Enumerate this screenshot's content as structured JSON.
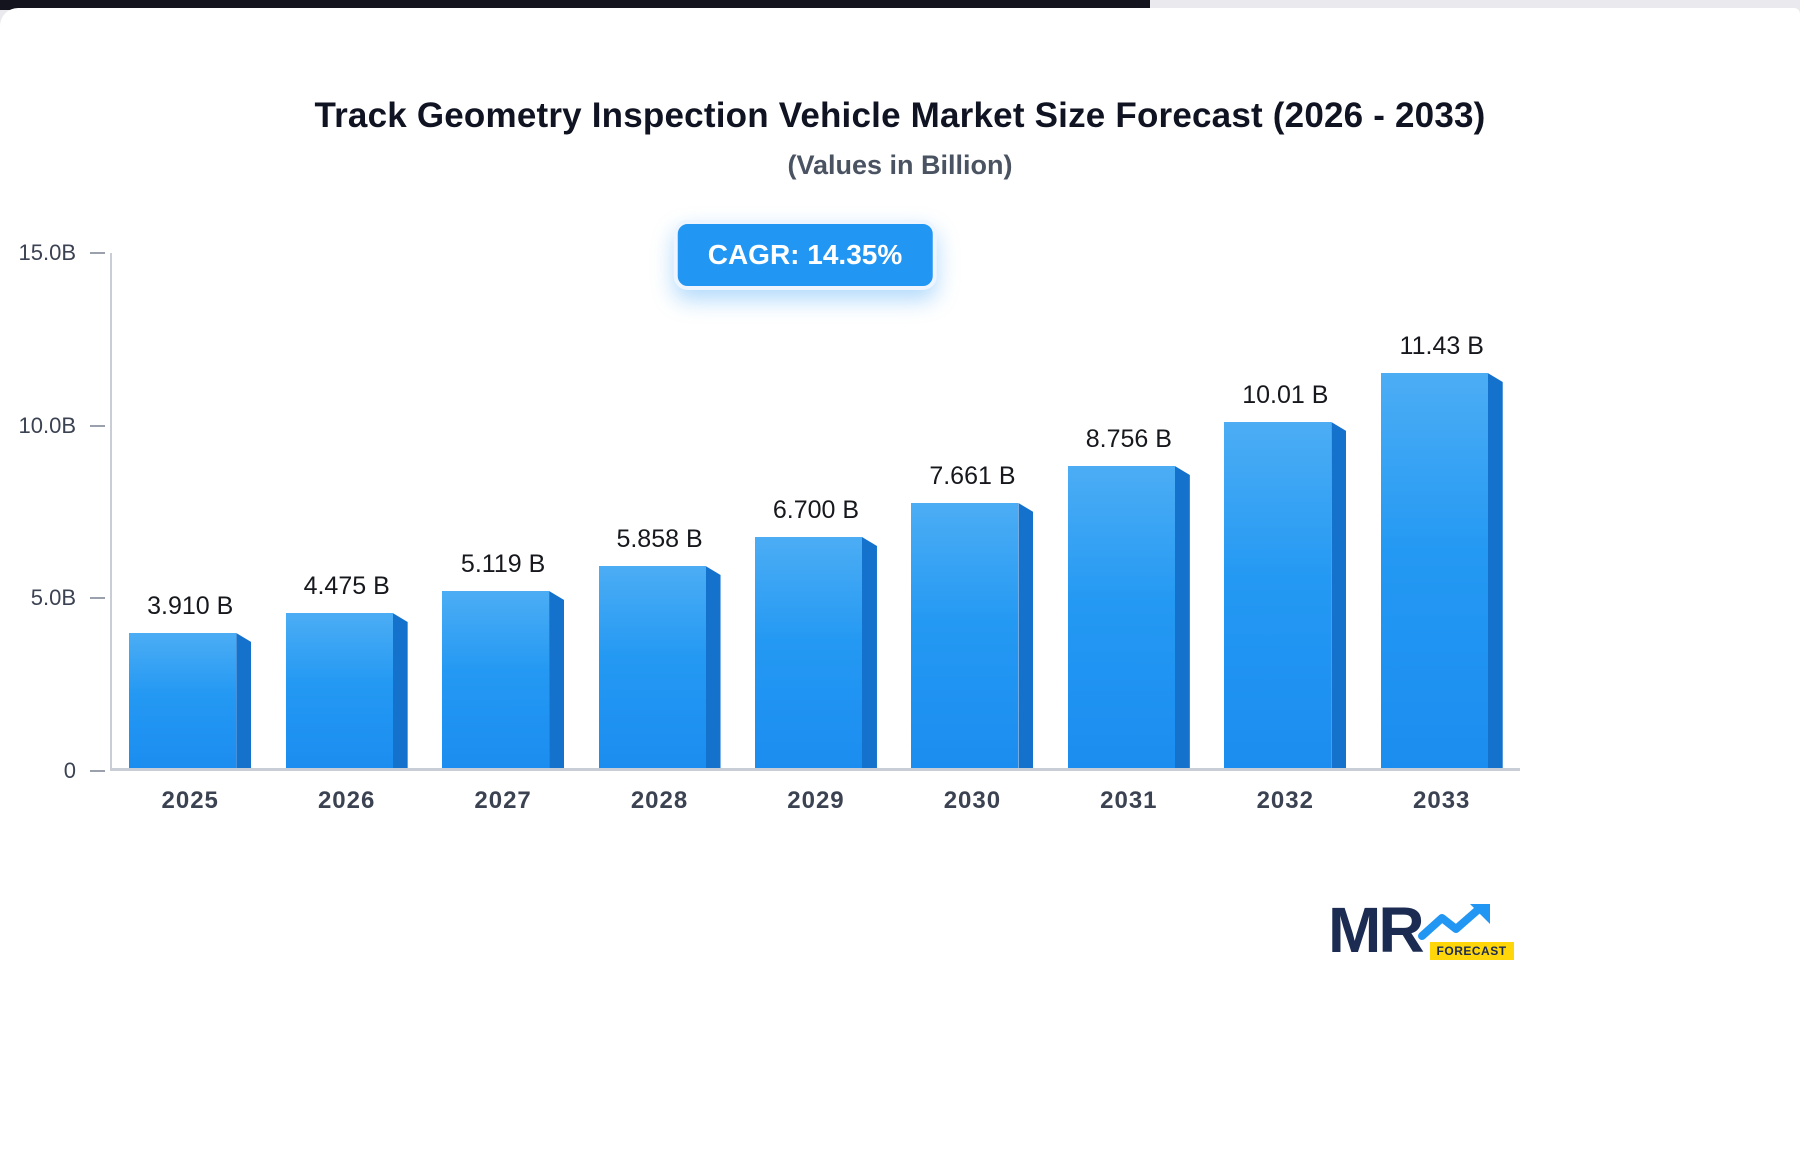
{
  "title": "Track Geometry Inspection Vehicle Market Size Forecast (2026 - 2033)",
  "subtitle": "(Values in Billion)",
  "badge": {
    "label": "CAGR: 14.35%"
  },
  "chart_data": {
    "type": "bar",
    "title": "Track Geometry Inspection Vehicle Market Size Forecast (2026 - 2033)",
    "categories": [
      "2025",
      "2026",
      "2027",
      "2028",
      "2029",
      "2030",
      "2031",
      "2032",
      "2033"
    ],
    "values": [
      3.91,
      4.475,
      5.119,
      5.858,
      6.7,
      7.661,
      8.756,
      10.01,
      11.43
    ],
    "value_labels": [
      "3.910 B",
      "4.475 B",
      "5.119 B",
      "5.858 B",
      "6.700 B",
      "7.661 B",
      "8.756 B",
      "10.01 B",
      "11.43 B"
    ],
    "xlabel": "",
    "ylabel": "",
    "ylim": [
      0,
      15
    ],
    "yticks": [
      {
        "label": "15.0B",
        "value": 15
      },
      {
        "label": "10.0B",
        "value": 10
      },
      {
        "label": "5.0B",
        "value": 5
      },
      {
        "label": "0",
        "value": 0
      }
    ],
    "legend": "none",
    "grid": "off",
    "colors": {
      "bar_front": "#2196f3",
      "bar_side": "#1472cd",
      "badge": "#2196f3"
    }
  },
  "logo": {
    "text": "MR",
    "tag": "FORECAST"
  }
}
